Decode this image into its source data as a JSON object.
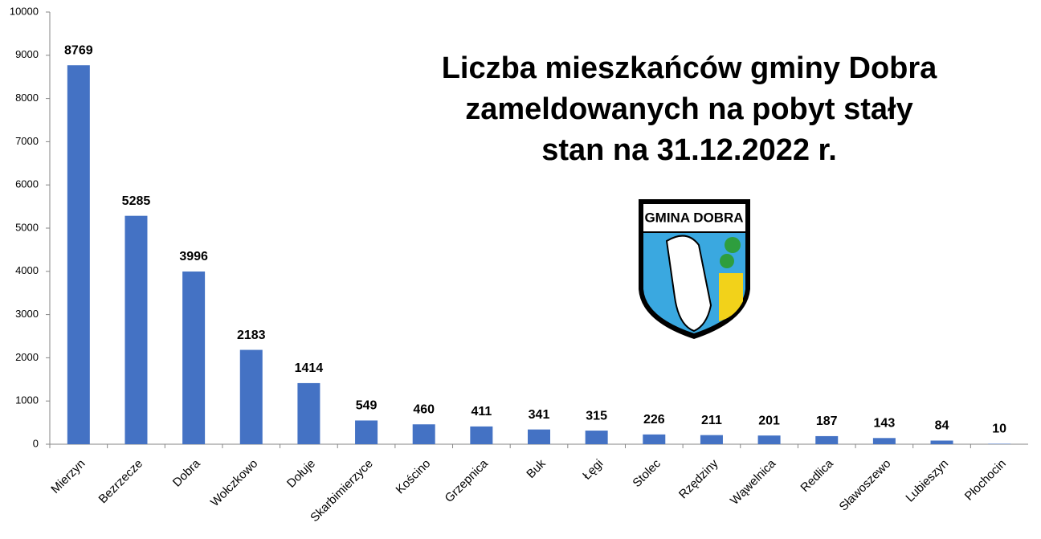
{
  "chart_data": {
    "type": "bar",
    "title": [
      "Liczba mieszkańców gminy Dobra",
      "zameldowanych na pobyt stały",
      "stan na 31.12.2022 r."
    ],
    "categories": [
      "Mierzyn",
      "Bezrzecze",
      "Dobra",
      "Wołczkowo",
      "Dołuje",
      "Skarbimierzyce",
      "Kościno",
      "Grzepnica",
      "Buk",
      "Łęgi",
      "Stolec",
      "Rzędziny",
      "Wąwelnica",
      "Redlica",
      "Sławoszewo",
      "Lubieszyn",
      "Płochocin"
    ],
    "values": [
      8769,
      5285,
      3996,
      2183,
      1414,
      549,
      460,
      411,
      341,
      315,
      226,
      211,
      201,
      187,
      143,
      84,
      10
    ],
    "color": "#4472c4",
    "ylim": [
      0,
      10000
    ],
    "yticks": [
      0,
      1000,
      2000,
      3000,
      4000,
      5000,
      6000,
      7000,
      8000,
      9000,
      10000
    ],
    "grid": false
  },
  "logo": {
    "label": "GMINA DOBRA"
  }
}
